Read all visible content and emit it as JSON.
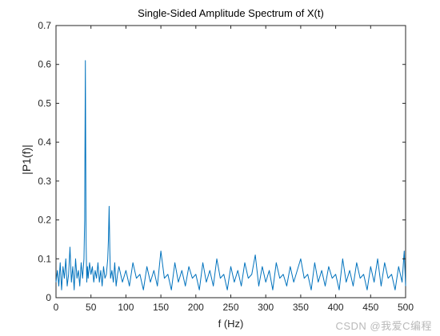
{
  "chart_data": {
    "type": "line",
    "title": "Single-Sided Amplitude Spectrum of X(t)",
    "xlabel": "f (Hz)",
    "ylabel": "|P1(f)|",
    "xlim": [
      0,
      500
    ],
    "ylim": [
      0,
      0.7
    ],
    "xticks": [
      0,
      50,
      100,
      150,
      200,
      250,
      300,
      350,
      400,
      450,
      500
    ],
    "yticks": [
      0,
      0.1,
      0.2,
      0.3,
      0.4,
      0.5,
      0.6,
      0.7
    ],
    "xtick_labels": [
      "0",
      "50",
      "100",
      "150",
      "200",
      "250",
      "300",
      "350",
      "400",
      "450",
      "500"
    ],
    "ytick_labels": [
      "0",
      "0.1",
      "0.2",
      "0.3",
      "0.4",
      "0.5",
      "0.6",
      "0.7"
    ],
    "grid": false,
    "series": [
      {
        "color": "#0072BD",
        "x": [
          0,
          2,
          4,
          6,
          8,
          10,
          12,
          14,
          16,
          18,
          20,
          22,
          24,
          26,
          28,
          30,
          32,
          34,
          36,
          38,
          40,
          41,
          42,
          43,
          44,
          45,
          46,
          48,
          50,
          52,
          54,
          56,
          58,
          60,
          62,
          64,
          66,
          68,
          70,
          72,
          74,
          75,
          76,
          77,
          78,
          80,
          82,
          84,
          86,
          88,
          90,
          95,
          100,
          105,
          110,
          115,
          120,
          125,
          130,
          135,
          140,
          145,
          150,
          155,
          160,
          165,
          170,
          175,
          180,
          185,
          190,
          195,
          200,
          205,
          210,
          215,
          220,
          225,
          230,
          235,
          240,
          245,
          250,
          255,
          260,
          265,
          270,
          275,
          280,
          285,
          290,
          295,
          300,
          305,
          310,
          315,
          320,
          325,
          330,
          335,
          340,
          345,
          350,
          355,
          360,
          365,
          370,
          375,
          380,
          385,
          390,
          395,
          400,
          405,
          410,
          415,
          420,
          425,
          430,
          435,
          440,
          445,
          450,
          455,
          460,
          465,
          470,
          475,
          480,
          485,
          490,
          495,
          498,
          500
        ],
        "y": [
          0.04,
          0.07,
          0.03,
          0.09,
          0.02,
          0.08,
          0.05,
          0.1,
          0.03,
          0.06,
          0.13,
          0.04,
          0.08,
          0.02,
          0.1,
          0.05,
          0.07,
          0.03,
          0.09,
          0.05,
          0.1,
          0.2,
          0.61,
          0.15,
          0.04,
          0.08,
          0.05,
          0.09,
          0.06,
          0.08,
          0.04,
          0.07,
          0.05,
          0.09,
          0.04,
          0.07,
          0.03,
          0.08,
          0.05,
          0.06,
          0.1,
          0.15,
          0.235,
          0.12,
          0.05,
          0.07,
          0.04,
          0.09,
          0.03,
          0.06,
          0.08,
          0.04,
          0.07,
          0.03,
          0.09,
          0.05,
          0.06,
          0.02,
          0.08,
          0.04,
          0.07,
          0.03,
          0.12,
          0.05,
          0.06,
          0.02,
          0.09,
          0.04,
          0.07,
          0.03,
          0.08,
          0.05,
          0.06,
          0.02,
          0.09,
          0.04,
          0.07,
          0.03,
          0.1,
          0.05,
          0.06,
          0.02,
          0.08,
          0.04,
          0.07,
          0.03,
          0.09,
          0.05,
          0.06,
          0.11,
          0.03,
          0.08,
          0.04,
          0.07,
          0.02,
          0.09,
          0.05,
          0.06,
          0.03,
          0.08,
          0.04,
          0.07,
          0.1,
          0.05,
          0.06,
          0.02,
          0.09,
          0.04,
          0.07,
          0.03,
          0.08,
          0.05,
          0.06,
          0.02,
          0.1,
          0.04,
          0.07,
          0.03,
          0.09,
          0.05,
          0.06,
          0.02,
          0.08,
          0.04,
          0.1,
          0.03,
          0.09,
          0.05,
          0.06,
          0.02,
          0.08,
          0.04,
          0.12,
          0.03
        ]
      }
    ]
  },
  "watermark": "CSDN @我爱C编程"
}
